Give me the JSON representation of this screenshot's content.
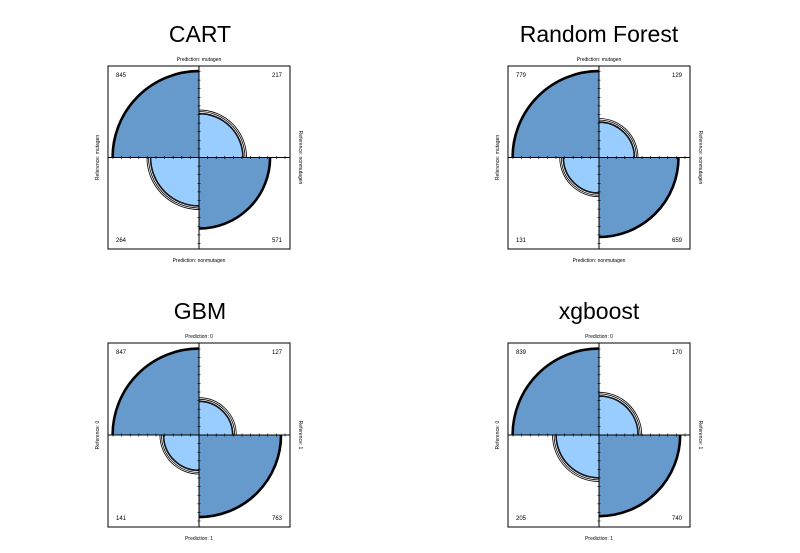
{
  "chart_data": [
    {
      "type": "fourfold",
      "title": "CART",
      "top_label": "Prediction: mutagen",
      "bottom_label": "Prediction: nonmutagen",
      "left_label": "Reference: mutagen",
      "right_label": "Reference: nonmutagen",
      "counts": {
        "top_left": 845,
        "top_right": 217,
        "bottom_left": 264,
        "bottom_right": 571
      }
    },
    {
      "type": "fourfold",
      "title": "Random Forest",
      "top_label": "Prediction: mutagen",
      "bottom_label": "Prediction: nonmutagen",
      "left_label": "Reference: mutagen",
      "right_label": "Reference: nonmutagen",
      "counts": {
        "top_left": 779,
        "top_right": 129,
        "bottom_left": 131,
        "bottom_right": 659
      }
    },
    {
      "type": "fourfold",
      "title": "GBM",
      "top_label": "Prediction: 0",
      "bottom_label": "Prediction: 1",
      "left_label": "Reference: 0",
      "right_label": "Reference: 1",
      "counts": {
        "top_left": 847,
        "top_right": 127,
        "bottom_left": 141,
        "bottom_right": 763
      }
    },
    {
      "type": "fourfold",
      "title": "xgboost",
      "top_label": "Prediction: 0",
      "bottom_label": "Prediction: 1",
      "left_label": "Reference: 0",
      "right_label": "Reference: 1",
      "counts": {
        "top_left": 839,
        "top_right": 170,
        "bottom_left": 205,
        "bottom_right": 740
      }
    }
  ],
  "colors": {
    "dark": "#6699cc",
    "light": "#99ccff"
  }
}
